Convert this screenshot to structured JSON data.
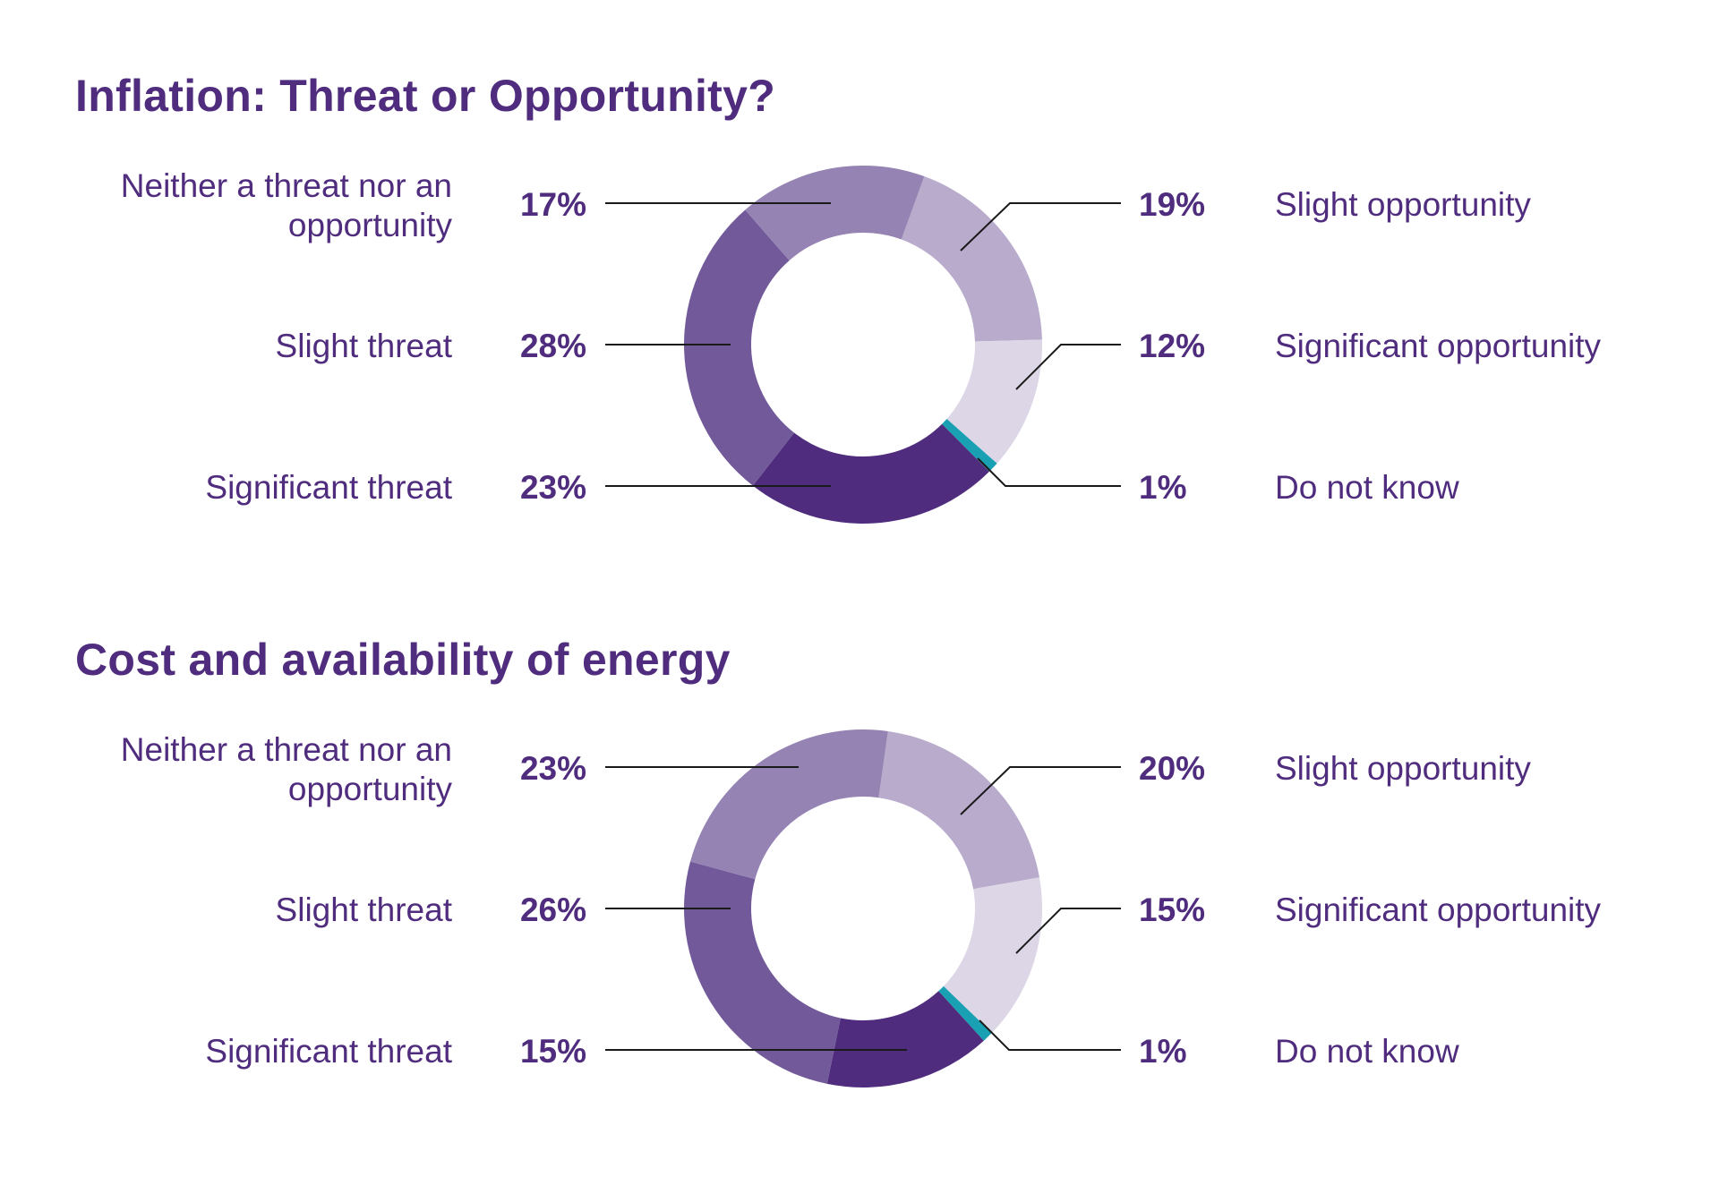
{
  "colors": {
    "text": "#4f2c7d",
    "significant_threat": "#4f2c7d",
    "slight_threat": "#725a9a",
    "neither": "#9583b3",
    "slight_opportunity": "#b8abcc",
    "significant_opportunity": "#dcd6e6",
    "do_not_know": "#1aa0b3",
    "leader": "#1a1a1a"
  },
  "chart_data": [
    {
      "type": "pie",
      "variant": "donut",
      "title": "Inflation: Threat or Opportunity?",
      "categories": [
        "Slight opportunity",
        "Significant opportunity",
        "Do not know",
        "Significant threat",
        "Slight threat",
        "Neither a threat nor an opportunity"
      ],
      "values": [
        19,
        12,
        1,
        23,
        28,
        17
      ],
      "labels": {
        "neither": [
          "Neither a threat nor an",
          "opportunity"
        ],
        "slight_threat": "Slight threat",
        "significant_threat": "Significant threat",
        "slight_opportunity": "Slight opportunity",
        "significant_opportunity": "Significant opportunity",
        "do_not_know": "Do not know"
      },
      "value_labels": {
        "neither": "17%",
        "slight_threat": "28%",
        "significant_threat": "23%",
        "slight_opportunity": "19%",
        "significant_opportunity": "12%",
        "do_not_know": "1%"
      }
    },
    {
      "type": "pie",
      "variant": "donut",
      "title": "Cost and availability of energy",
      "categories": [
        "Slight opportunity",
        "Significant opportunity",
        "Do not know",
        "Significant threat",
        "Slight threat",
        "Neither a threat nor an opportunity"
      ],
      "values": [
        20,
        15,
        1,
        15,
        26,
        23
      ],
      "labels": {
        "neither": [
          "Neither a threat nor an",
          "opportunity"
        ],
        "slight_threat": "Slight threat",
        "significant_threat": "Significant threat",
        "slight_opportunity": "Slight opportunity",
        "significant_opportunity": "Significant opportunity",
        "do_not_know": "Do not know"
      },
      "value_labels": {
        "neither": "23%",
        "slight_threat": "26%",
        "significant_threat": "15%",
        "slight_opportunity": "20%",
        "significant_opportunity": "15%",
        "do_not_know": "1%"
      }
    }
  ]
}
